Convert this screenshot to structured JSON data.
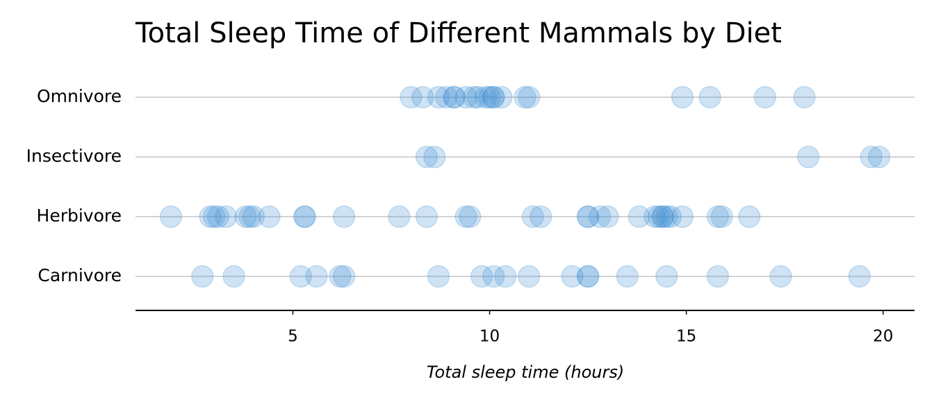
{
  "chart_data": {
    "type": "strip",
    "title": "Total Sleep Time of Different Mammals by Diet",
    "x_label": "Total sleep time (hours)",
    "categories": [
      "Omnivore",
      "Insectivore",
      "Herbivore",
      "Carnivore"
    ],
    "values": [
      [
        8.0,
        8.3,
        8.7,
        8.9,
        9.1,
        9.1,
        9.4,
        9.6,
        9.7,
        9.9,
        10.0,
        10.1,
        10.1,
        10.3,
        10.9,
        11.0,
        14.9,
        15.6,
        17.0,
        18.0
      ],
      [
        8.4,
        8.6,
        18.1,
        19.7,
        19.9
      ],
      [
        1.9,
        2.9,
        3.0,
        3.1,
        3.3,
        3.8,
        3.9,
        4.0,
        4.4,
        5.3,
        5.3,
        6.3,
        7.7,
        8.4,
        9.4,
        9.5,
        11.1,
        11.3,
        12.5,
        12.5,
        12.8,
        13.0,
        13.8,
        14.2,
        14.3,
        14.4,
        14.4,
        14.5,
        14.6,
        14.9,
        15.8,
        15.9,
        16.6
      ],
      [
        2.7,
        3.5,
        5.2,
        5.6,
        6.2,
        6.3,
        8.7,
        9.8,
        10.1,
        10.4,
        11.0,
        12.1,
        12.5,
        12.5,
        13.5,
        14.5,
        15.8,
        17.4,
        19.4
      ]
    ],
    "color": "#3f8fd2",
    "opacity": 0.25,
    "xlim": [
      1.0,
      20.8
    ],
    "xticks": [
      5,
      10,
      15,
      20
    ],
    "grid": true
  }
}
